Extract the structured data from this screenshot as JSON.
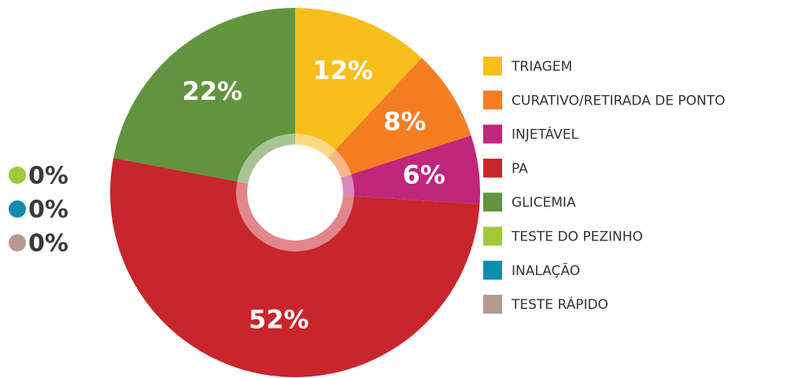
{
  "chart_data": {
    "type": "pie",
    "categories": [
      "TRIAGEM",
      "CURATIVO/RETIRADA DE PONTO",
      "INJETÁVEL",
      "PA",
      "GLICEMIA",
      "TESTE DO PEZINHO",
      "INALAÇÃO",
      "TESTE RÁPIDO"
    ],
    "values": [
      12,
      8,
      6,
      52,
      22,
      0,
      0,
      0
    ],
    "value_labels": [
      "12%",
      "8%",
      "6%",
      "52%",
      "22%",
      "0%",
      "0%",
      "0%"
    ],
    "colors": [
      "#f8be1c",
      "#f47d22",
      "#c0267a",
      "#c8262c",
      "#62943f",
      "#9dc93b",
      "#0f8cad",
      "#b59a8e"
    ],
    "legend": "right"
  }
}
